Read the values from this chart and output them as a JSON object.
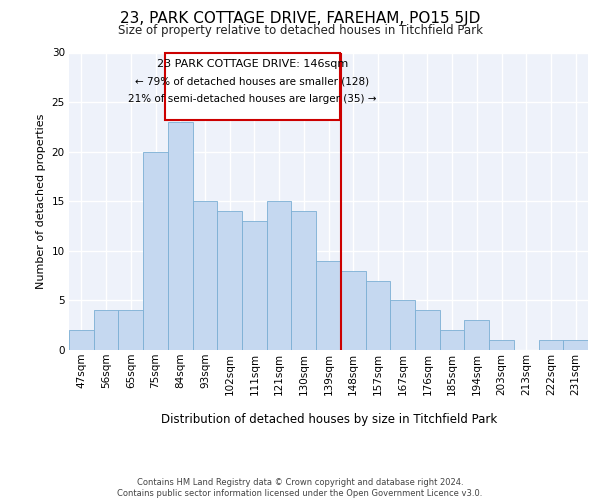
{
  "title": "23, PARK COTTAGE DRIVE, FAREHAM, PO15 5JD",
  "subtitle": "Size of property relative to detached houses in Titchfield Park",
  "xlabel": "Distribution of detached houses by size in Titchfield Park",
  "ylabel": "Number of detached properties",
  "categories": [
    "47sqm",
    "56sqm",
    "65sqm",
    "75sqm",
    "84sqm",
    "93sqm",
    "102sqm",
    "111sqm",
    "121sqm",
    "130sqm",
    "139sqm",
    "148sqm",
    "157sqm",
    "167sqm",
    "176sqm",
    "185sqm",
    "194sqm",
    "203sqm",
    "213sqm",
    "222sqm",
    "231sqm"
  ],
  "values": [
    2,
    4,
    4,
    20,
    23,
    15,
    14,
    13,
    15,
    14,
    9,
    8,
    7,
    5,
    4,
    2,
    3,
    1,
    0,
    1,
    1
  ],
  "bar_color": "#c5d8f0",
  "bar_edge_color": "#7bafd4",
  "ref_line_label": "23 PARK COTTAGE DRIVE: 146sqm",
  "annotation_line1": "← 79% of detached houses are smaller (128)",
  "annotation_line2": "21% of semi-detached houses are larger (35) →",
  "box_edge_color": "#cc0000",
  "ref_line_color": "#cc0000",
  "ylim": [
    0,
    30
  ],
  "yticks": [
    0,
    5,
    10,
    15,
    20,
    25,
    30
  ],
  "background_color": "#eef2fa",
  "grid_color": "#ffffff",
  "footer1": "Contains HM Land Registry data © Crown copyright and database right 2024.",
  "footer2": "Contains public sector information licensed under the Open Government Licence v3.0."
}
